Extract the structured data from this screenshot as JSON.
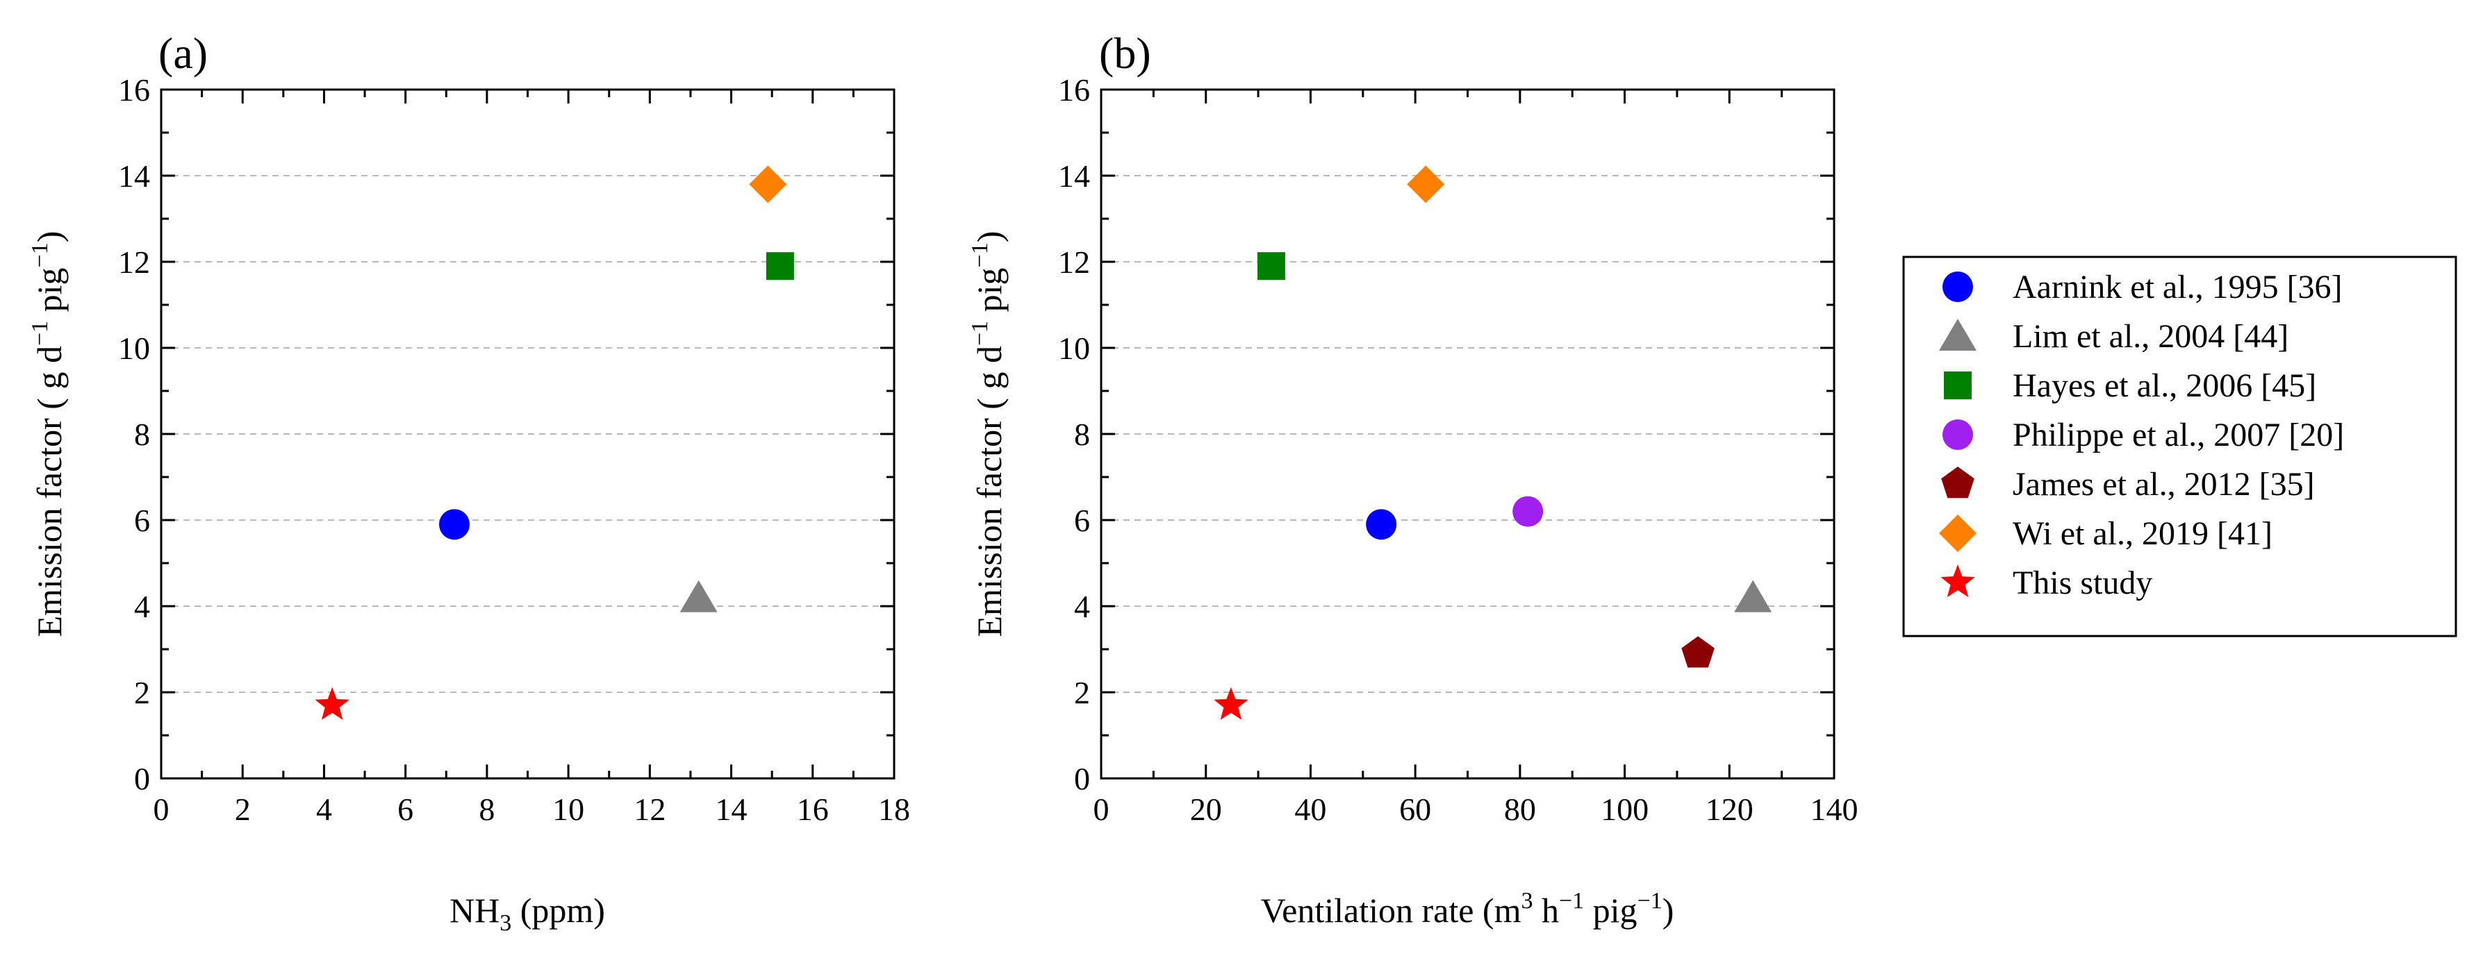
{
  "chart_data": [
    {
      "type": "scatter",
      "panel_label": "(a)",
      "xlabel": {
        "main": "NH",
        "sub": "3",
        "rest": " (ppm)"
      },
      "ylabel": {
        "prefix": "Emission factor ( g d",
        "sup1": "−1",
        "mid": " pig",
        "sup2": "−1",
        "suffix": ")"
      },
      "xlim": [
        0,
        18
      ],
      "ylim": [
        0,
        16
      ],
      "xticks": [
        0,
        2,
        4,
        6,
        8,
        10,
        12,
        14,
        16,
        18
      ],
      "yticks": [
        0,
        2,
        4,
        6,
        8,
        10,
        12,
        14,
        16
      ],
      "grid": "horizontal dashed",
      "points": [
        {
          "series": "Aarnink et al., 1995 [36]",
          "x": 7.2,
          "y": 5.9
        },
        {
          "series": "Lim et al., 2004 [44]",
          "x": 13.2,
          "y": 4.2
        },
        {
          "series": "Hayes et al., 2006 [45]",
          "x": 15.2,
          "y": 11.9
        },
        {
          "series": "Wi et al., 2019 [41]",
          "x": 14.9,
          "y": 13.8
        },
        {
          "series": "This study",
          "x": 4.2,
          "y": 1.7
        }
      ]
    },
    {
      "type": "scatter",
      "panel_label": "(b)",
      "xlabel": {
        "prefix": "Ventilation rate (m",
        "sup1": "3",
        "mid1": " h",
        "sup2": "−1",
        "mid2": " pig",
        "sup3": "−1",
        "suffix": ")"
      },
      "ylabel": {
        "prefix": "Emission factor ( g d",
        "sup1": "−1",
        "mid": " pig",
        "sup2": "−1",
        "suffix": ")"
      },
      "xlim": [
        0,
        140
      ],
      "ylim": [
        0,
        16
      ],
      "xticks": [
        0,
        20,
        40,
        60,
        80,
        100,
        120,
        140
      ],
      "yticks": [
        0,
        2,
        4,
        6,
        8,
        10,
        12,
        14,
        16
      ],
      "grid": "horizontal dashed",
      "points": [
        {
          "series": "Aarnink et al., 1995 [36]",
          "x": 53.5,
          "y": 5.9
        },
        {
          "series": "Lim et al., 2004 [44]",
          "x": 124.5,
          "y": 4.2
        },
        {
          "series": "Hayes et al., 2006 [45]",
          "x": 32.5,
          "y": 11.9
        },
        {
          "series": "Philippe et al., 2007 [20]",
          "x": 81.5,
          "y": 6.2
        },
        {
          "series": "James et al., 2012 [35]",
          "x": 114,
          "y": 2.9
        },
        {
          "series": "Wi et al., 2019 [41]",
          "x": 62,
          "y": 13.8
        },
        {
          "series": "This study",
          "x": 24.8,
          "y": 1.7
        }
      ]
    }
  ],
  "legend": {
    "placement": "right, outside plots",
    "entries": [
      {
        "label": "Aarnink et al., 1995 [36]",
        "marker": "circle",
        "color": "#0000ff"
      },
      {
        "label": "Lim et al., 2004 [44]",
        "marker": "triangle",
        "color": "#808080"
      },
      {
        "label": "Hayes et al., 2006 [45]",
        "marker": "square",
        "color": "#008000"
      },
      {
        "label": "Philippe et al., 2007 [20]",
        "marker": "circle",
        "color": "#a020f0"
      },
      {
        "label": "James et al., 2012 [35]",
        "marker": "pentagon",
        "color": "#8b0000"
      },
      {
        "label": "Wi et al., 2019 [41]",
        "marker": "diamond",
        "color": "#ff8000"
      },
      {
        "label": "This study",
        "marker": "star",
        "color": "#ff0000"
      }
    ]
  }
}
